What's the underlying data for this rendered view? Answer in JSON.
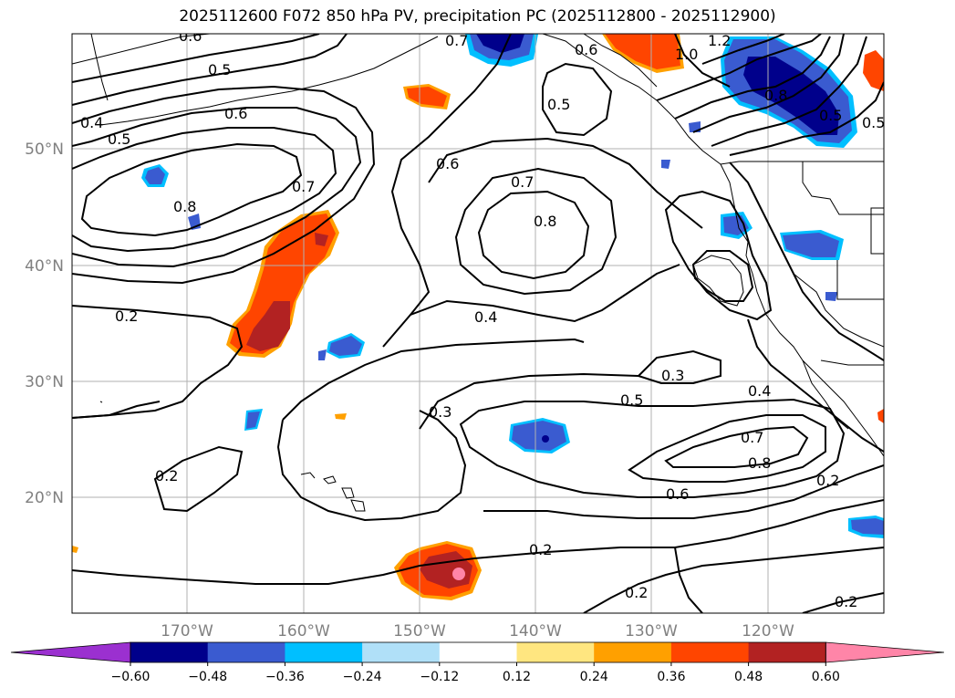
{
  "title": "2025112600 F072 850 hPa PV, precipitation PC (2025112800 - 2025112900)",
  "map": {
    "lon_labels": [
      "170°W",
      "160°W",
      "150°W",
      "140°W",
      "130°W",
      "120°W"
    ],
    "lat_labels": [
      "50°N",
      "40°N",
      "30°N",
      "20°N"
    ],
    "contour_labels": [
      "0.6",
      "0.5",
      "0.4",
      "0.5",
      "0.6",
      "0.7",
      "0.8",
      "0.7",
      "0.5",
      "0.6",
      "0.7",
      "0.8",
      "0.6",
      "1.2",
      "1.0",
      "0.8",
      "0.5",
      "0.5",
      "0.2",
      "0.4",
      "0.3",
      "0.3",
      "0.5",
      "0.4",
      "0.7",
      "0.8",
      "0.6",
      "0.2",
      "0.2",
      "0.2",
      "0.2",
      "0.2"
    ]
  },
  "colorbar": {
    "ticks": [
      "−0.60",
      "−0.48",
      "−0.36",
      "−0.24",
      "−0.12",
      "0.12",
      "0.24",
      "0.36",
      "0.48",
      "0.60"
    ],
    "colors": [
      "#9b30d0",
      "#00008b",
      "#3a5bd0",
      "#00bfff",
      "#b0e0f8",
      "#ffffff",
      "#ffe680",
      "#ffa000",
      "#ff4500",
      "#b22222",
      "#ff85a8"
    ]
  }
}
